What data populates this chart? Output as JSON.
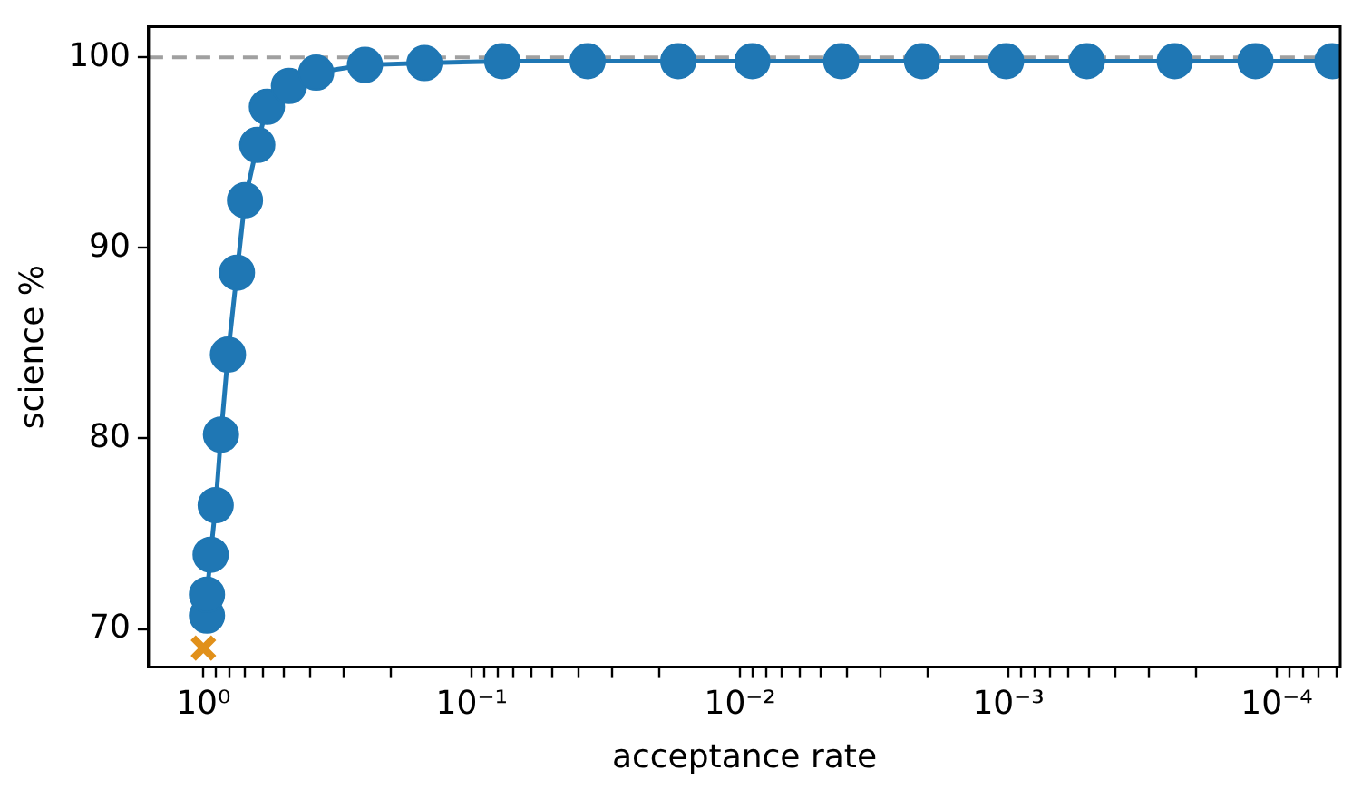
{
  "chart_data": {
    "type": "line",
    "xlabel": "acceptance rate",
    "ylabel": "science %",
    "log": "x",
    "xlim": [
      1.6,
      5.8e-05
    ],
    "ylim": [
      68,
      101.6
    ],
    "yticks": [
      70,
      80,
      90,
      100
    ],
    "xticks": [
      {
        "value": 1,
        "label": "10⁰"
      },
      {
        "value": 0.9,
        "label": null
      },
      {
        "value": 0.8,
        "label": null
      },
      {
        "value": 0.7,
        "label": null
      },
      {
        "value": 0.6,
        "label": null
      },
      {
        "value": 0.5,
        "label": null
      },
      {
        "value": 0.4,
        "label": null
      },
      {
        "value": 0.3,
        "label": null
      },
      {
        "value": 0.2,
        "label": null
      },
      {
        "value": 0.1,
        "label": "10⁻¹"
      },
      {
        "value": 0.09,
        "label": null
      },
      {
        "value": 0.08,
        "label": null
      },
      {
        "value": 0.07,
        "label": null
      },
      {
        "value": 0.06,
        "label": null
      },
      {
        "value": 0.05,
        "label": null
      },
      {
        "value": 0.04,
        "label": null
      },
      {
        "value": 0.03,
        "label": null
      },
      {
        "value": 0.02,
        "label": null
      },
      {
        "value": 0.01,
        "label": "10⁻²"
      },
      {
        "value": 0.009,
        "label": null
      },
      {
        "value": 0.008,
        "label": null
      },
      {
        "value": 0.007,
        "label": null
      },
      {
        "value": 0.006,
        "label": null
      },
      {
        "value": 0.005,
        "label": null
      },
      {
        "value": 0.004,
        "label": null
      },
      {
        "value": 0.003,
        "label": null
      },
      {
        "value": 0.002,
        "label": null
      },
      {
        "value": 0.001,
        "label": "10⁻³"
      },
      {
        "value": 0.0009,
        "label": null
      },
      {
        "value": 0.0008,
        "label": null
      },
      {
        "value": 0.0007,
        "label": null
      },
      {
        "value": 0.0006,
        "label": null
      },
      {
        "value": 0.0005,
        "label": null
      },
      {
        "value": 0.0004,
        "label": null
      },
      {
        "value": 0.0003,
        "label": null
      },
      {
        "value": 0.0002,
        "label": null
      },
      {
        "value": 0.0001,
        "label": "10⁻⁴"
      },
      {
        "value": 9e-05,
        "label": null
      },
      {
        "value": 8e-05,
        "label": null
      },
      {
        "value": 7e-05,
        "label": null
      },
      {
        "value": 6e-05,
        "label": null
      }
    ],
    "grid": false,
    "legend": false,
    "ref_lines": [
      {
        "axis": "y",
        "value": 100,
        "label": null,
        "color": "#a0a0a0",
        "line_style": "dashed"
      }
    ],
    "series": [
      {
        "color": "#1f77b4",
        "marker": "circle",
        "x": [
          0.97,
          0.97,
          0.94,
          0.9,
          0.86,
          0.81,
          0.75,
          0.7,
          0.63,
          0.58,
          0.48,
          0.38,
          0.25,
          0.15,
          0.077,
          0.037,
          0.017,
          0.009,
          0.0042,
          0.0021,
          0.00102,
          0.00051,
          0.00024,
          0.00012,
          6.2e-05
        ],
        "values": [
          70.7,
          71.8,
          73.9,
          76.5,
          80.2,
          84.4,
          88.7,
          92.5,
          95.4,
          97.4,
          98.5,
          99.2,
          99.6,
          99.7,
          99.8,
          99.8,
          99.8,
          99.8,
          99.8,
          99.8,
          99.8,
          99.8,
          99.8,
          99.8,
          99.8
        ]
      },
      {
        "type": "scatter",
        "color": "#e1901a",
        "marker": "cross",
        "x": [
          1.0
        ],
        "values": [
          69.0
        ]
      }
    ]
  }
}
